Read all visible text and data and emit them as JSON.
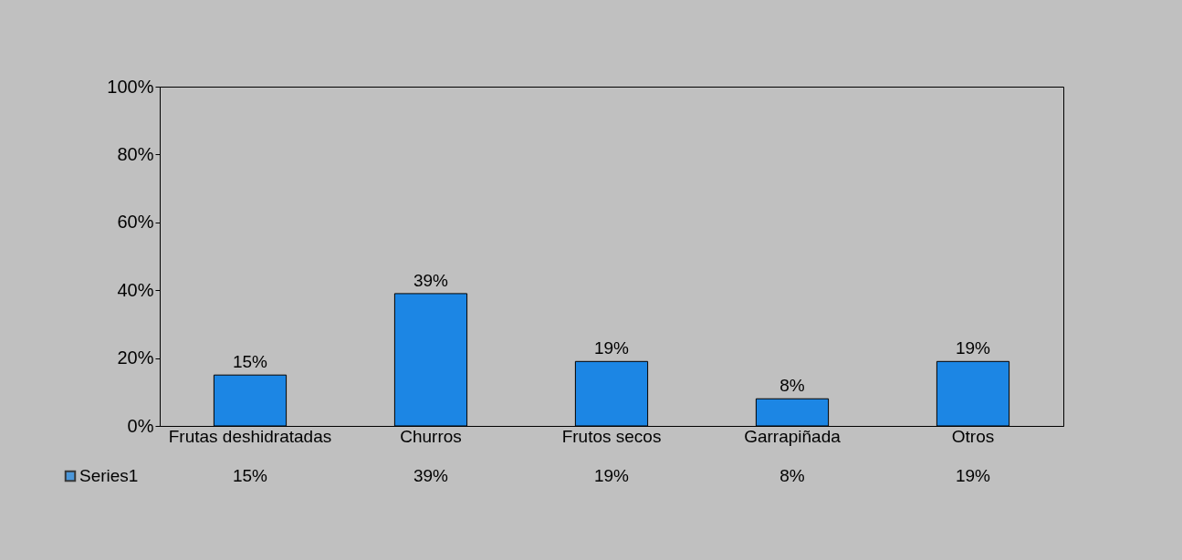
{
  "chart_data": {
    "type": "bar",
    "categories": [
      "Frutas deshidratadas",
      "Churros",
      "Frutos secos",
      "Garrapiñada",
      "Otros"
    ],
    "series": [
      {
        "name": "Series1",
        "color": "#1c86e4",
        "values": [
          15,
          39,
          19,
          8,
          19
        ]
      }
    ],
    "ylim": [
      0,
      100
    ],
    "yticks": [
      {
        "value": 0,
        "label": "0%"
      },
      {
        "value": 20,
        "label": "20%"
      },
      {
        "value": 40,
        "label": "40%"
      },
      {
        "value": 60,
        "label": "60%"
      },
      {
        "value": 80,
        "label": "80%"
      },
      {
        "value": 100,
        "label": "100%"
      }
    ],
    "value_labels": [
      "15%",
      "39%",
      "19%",
      "8%",
      "19%"
    ],
    "grid": false,
    "legend": "bottom left"
  }
}
